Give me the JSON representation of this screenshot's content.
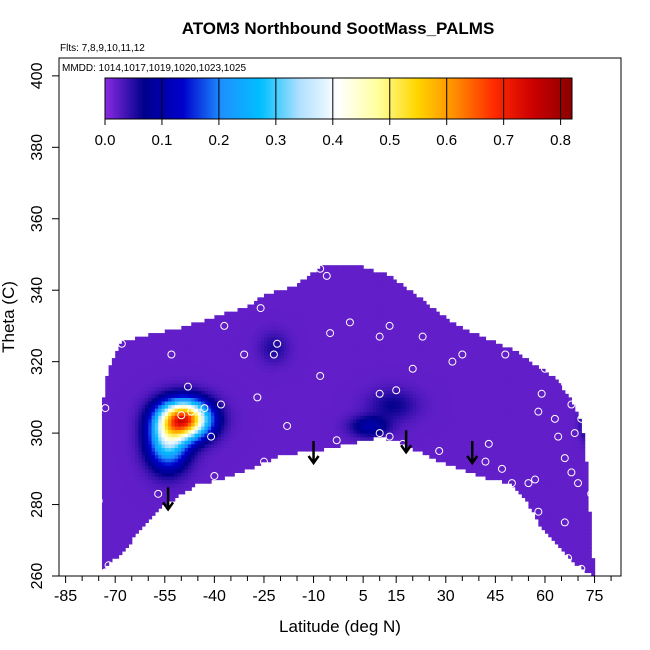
{
  "chart_data": {
    "type": "heatmap",
    "title": "ATOM3 Northbound SootMass_PALMS",
    "xlabel": "Latitude (deg N)",
    "ylabel": "Theta (C)",
    "annotations": {
      "flights": "Flts: 7,8,9,10,11,12",
      "dates": "MMDD: 1014,1017,1019,1020,1023,1025"
    },
    "xlim": [
      -87,
      83
    ],
    "ylim": [
      260,
      405
    ],
    "x_ticks": [
      -85,
      -70,
      -55,
      -40,
      -25,
      -10,
      5,
      15,
      30,
      45,
      60,
      75
    ],
    "x_tick_labels": [
      "-85",
      "-70",
      "-55",
      "-40",
      "-25",
      "-10",
      "5",
      "15",
      "30",
      "45",
      "60",
      "75"
    ],
    "x_minor_step": 5,
    "y_ticks": [
      260,
      280,
      300,
      320,
      340,
      360,
      380,
      400
    ],
    "y_tick_labels": [
      "260",
      "280",
      "300",
      "320",
      "340",
      "360",
      "380",
      "400"
    ],
    "colorbar": {
      "range": [
        0,
        0.82
      ],
      "ticks": [
        0,
        0.1,
        0.2,
        0.3,
        0.4,
        0.5,
        0.6,
        0.7,
        0.8
      ],
      "tick_labels": [
        "0.0",
        "0.1",
        "0.2",
        "0.3",
        "0.4",
        "0.5",
        "0.6",
        "0.7",
        "0.8"
      ],
      "colors": [
        "#8a2be2",
        "#00008b",
        "#0000cd",
        "#1e90ff",
        "#00bfff",
        "#b0e0ff",
        "#ffffff",
        "#ffffa0",
        "#ffd700",
        "#ff8c00",
        "#ff2a00",
        "#cc0000",
        "#8b0000"
      ]
    },
    "background_value": 0.02,
    "domain_top": [
      [
        -74,
        307
      ],
      [
        -72,
        318
      ],
      [
        -68,
        325
      ],
      [
        -60,
        327
      ],
      [
        -50,
        329
      ],
      [
        -40,
        332
      ],
      [
        -30,
        335
      ],
      [
        -25,
        338
      ],
      [
        -15,
        341
      ],
      [
        -8,
        346
      ],
      [
        0,
        347
      ],
      [
        5,
        346
      ],
      [
        12,
        344
      ],
      [
        20,
        339
      ],
      [
        28,
        333
      ],
      [
        35,
        329
      ],
      [
        45,
        325
      ],
      [
        52,
        322
      ],
      [
        58,
        318
      ],
      [
        63,
        315
      ],
      [
        67,
        310
      ],
      [
        70,
        305
      ],
      [
        72,
        298
      ],
      [
        73,
        285
      ],
      [
        74,
        270
      ],
      [
        75,
        260
      ]
    ],
    "domain_bottom": [
      [
        75,
        260
      ],
      [
        70,
        263
      ],
      [
        64,
        268
      ],
      [
        58,
        275
      ],
      [
        54,
        282
      ],
      [
        49,
        286
      ],
      [
        40,
        288
      ],
      [
        32,
        291
      ],
      [
        26,
        293
      ],
      [
        15,
        298
      ],
      [
        10,
        299
      ],
      [
        0,
        297
      ],
      [
        -10,
        295
      ],
      [
        -20,
        294
      ],
      [
        -27,
        291
      ],
      [
        -38,
        287
      ],
      [
        -45,
        286
      ],
      [
        -50,
        283
      ],
      [
        -55,
        280
      ],
      [
        -60,
        276
      ],
      [
        -65,
        270
      ],
      [
        -70,
        265
      ],
      [
        -76,
        260
      ]
    ],
    "domain_left_edge": [
      [
        -76,
        260
      ],
      [
        -75.5,
        285
      ],
      [
        -75,
        300
      ],
      [
        -74,
        307
      ]
    ],
    "hotspots": [
      {
        "lat": -49,
        "theta": 304,
        "peak": 0.65,
        "sx": 5,
        "sy": 3.5
      },
      {
        "lat": -54,
        "theta": 298,
        "peak": 0.3,
        "sx": 4,
        "sy": 5
      },
      {
        "lat": 7,
        "theta": 302,
        "peak": 0.08,
        "sx": 4,
        "sy": 2
      },
      {
        "lat": 14,
        "theta": 308,
        "peak": 0.045,
        "sx": 5,
        "sy": 3
      },
      {
        "lat": -22,
        "theta": 324,
        "peak": 0.035,
        "sx": 3,
        "sy": 3
      },
      {
        "lat": 73,
        "theta": 303,
        "peak": 0.08,
        "sx": 1.5,
        "sy": 3
      }
    ],
    "sample_points": [
      [
        -73,
        261
      ],
      [
        -75,
        281
      ],
      [
        -73,
        307
      ],
      [
        -68,
        325
      ],
      [
        -72,
        263
      ],
      [
        -57,
        283
      ],
      [
        -63,
        270
      ],
      [
        -53,
        322
      ],
      [
        -48,
        313
      ],
      [
        -47,
        306
      ],
      [
        -50,
        305
      ],
      [
        -43,
        307
      ],
      [
        -41,
        299
      ],
      [
        -40,
        288
      ],
      [
        -38,
        308
      ],
      [
        -37,
        330
      ],
      [
        -31,
        322
      ],
      [
        -26,
        335
      ],
      [
        -27,
        310
      ],
      [
        -25,
        292
      ],
      [
        -22,
        322
      ],
      [
        -21,
        325
      ],
      [
        -18,
        302
      ],
      [
        -13,
        293
      ],
      [
        -8,
        316
      ],
      [
        -3,
        298
      ],
      [
        -5,
        328
      ],
      [
        1,
        331
      ],
      [
        -6,
        344
      ],
      [
        -8,
        346
      ],
      [
        10,
        300
      ],
      [
        10,
        311
      ],
      [
        10,
        327
      ],
      [
        13,
        330
      ],
      [
        13,
        299
      ],
      [
        15,
        312
      ],
      [
        17,
        297
      ],
      [
        19,
        342
      ],
      [
        20,
        318
      ],
      [
        23,
        327
      ],
      [
        28,
        295
      ],
      [
        32,
        320
      ],
      [
        35,
        322
      ],
      [
        42,
        292
      ],
      [
        43,
        297
      ],
      [
        47,
        290
      ],
      [
        48,
        322
      ],
      [
        50,
        286
      ],
      [
        55,
        286
      ],
      [
        57,
        287
      ],
      [
        58,
        278
      ],
      [
        59,
        311
      ],
      [
        58,
        306
      ],
      [
        60,
        318
      ],
      [
        63,
        304
      ],
      [
        64,
        299
      ],
      [
        66,
        293
      ],
      [
        68,
        289
      ],
      [
        70,
        286
      ],
      [
        66,
        314
      ],
      [
        68,
        308
      ],
      [
        66,
        275
      ],
      [
        67,
        265
      ],
      [
        71,
        262
      ],
      [
        74,
        283
      ],
      [
        71,
        304
      ],
      [
        69,
        300
      ]
    ],
    "arrows": [
      [
        -54,
        282
      ],
      [
        -10,
        295
      ],
      [
        18,
        298
      ],
      [
        38,
        295
      ]
    ]
  }
}
